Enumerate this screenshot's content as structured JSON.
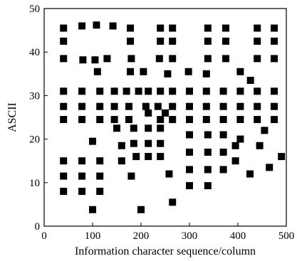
{
  "chart_data": {
    "type": "scatter",
    "xlabel": "Information character sequence/column",
    "ylabel": "ASCII",
    "xlim": [
      0,
      500
    ],
    "ylim": [
      0,
      50
    ],
    "xticks": [
      "0",
      "100",
      "200",
      "300",
      "400",
      "500"
    ],
    "yticks": [
      "0",
      "10",
      "20",
      "30",
      "40",
      "50"
    ],
    "marker": "square",
    "marker_color": "#000000",
    "grid": false,
    "points": [
      [
        40,
        45.5
      ],
      [
        78,
        46.0
      ],
      [
        108,
        46.2
      ],
      [
        142,
        46.0
      ],
      [
        178,
        45.5
      ],
      [
        240,
        45.5
      ],
      [
        265,
        45.5
      ],
      [
        338,
        45.5
      ],
      [
        375,
        45.5
      ],
      [
        440,
        45.5
      ],
      [
        475,
        45.5
      ],
      [
        40,
        42.5
      ],
      [
        178,
        42.5
      ],
      [
        240,
        42.5
      ],
      [
        265,
        42.5
      ],
      [
        338,
        42.5
      ],
      [
        375,
        42.5
      ],
      [
        440,
        42.5
      ],
      [
        475,
        42.5
      ],
      [
        40,
        38.5
      ],
      [
        80,
        38.2
      ],
      [
        105,
        38.2
      ],
      [
        130,
        38.5
      ],
      [
        180,
        38.5
      ],
      [
        238,
        38.5
      ],
      [
        265,
        38.5
      ],
      [
        338,
        38.5
      ],
      [
        375,
        38.5
      ],
      [
        440,
        38.5
      ],
      [
        475,
        38.5
      ],
      [
        110,
        35.5
      ],
      [
        178,
        35.5
      ],
      [
        205,
        35.5
      ],
      [
        255,
        35.0
      ],
      [
        298,
        35.5
      ],
      [
        335,
        35.0
      ],
      [
        405,
        35.5
      ],
      [
        426,
        33.5
      ],
      [
        40,
        31.0
      ],
      [
        78,
        31.0
      ],
      [
        115,
        31.0
      ],
      [
        145,
        31.0
      ],
      [
        170,
        31.0
      ],
      [
        195,
        31.0
      ],
      [
        215,
        31.0
      ],
      [
        240,
        31.0
      ],
      [
        265,
        31.0
      ],
      [
        300,
        31.0
      ],
      [
        335,
        31.0
      ],
      [
        370,
        31.0
      ],
      [
        405,
        31.0
      ],
      [
        440,
        31.0
      ],
      [
        475,
        31.0
      ],
      [
        40,
        27.5
      ],
      [
        78,
        27.5
      ],
      [
        115,
        27.5
      ],
      [
        145,
        27.5
      ],
      [
        175,
        27.5
      ],
      [
        210,
        27.5
      ],
      [
        235,
        27.5
      ],
      [
        265,
        27.5
      ],
      [
        300,
        27.5
      ],
      [
        335,
        27.5
      ],
      [
        370,
        27.5
      ],
      [
        405,
        27.5
      ],
      [
        440,
        27.5
      ],
      [
        475,
        27.5
      ],
      [
        215,
        26.0
      ],
      [
        250,
        26.0
      ],
      [
        40,
        24.5
      ],
      [
        78,
        24.5
      ],
      [
        115,
        24.5
      ],
      [
        145,
        24.5
      ],
      [
        175,
        24.5
      ],
      [
        240,
        24.5
      ],
      [
        265,
        24.5
      ],
      [
        300,
        24.5
      ],
      [
        335,
        24.5
      ],
      [
        370,
        24.5
      ],
      [
        405,
        24.5
      ],
      [
        440,
        24.5
      ],
      [
        475,
        24.5
      ],
      [
        150,
        22.5
      ],
      [
        185,
        22.5
      ],
      [
        215,
        22.5
      ],
      [
        240,
        22.5
      ],
      [
        455,
        22.0
      ],
      [
        300,
        21.0
      ],
      [
        338,
        21.0
      ],
      [
        370,
        21.0
      ],
      [
        405,
        20.0
      ],
      [
        100,
        19.5
      ],
      [
        185,
        19.0
      ],
      [
        215,
        19.0
      ],
      [
        240,
        19.0
      ],
      [
        160,
        18.5
      ],
      [
        395,
        18.5
      ],
      [
        445,
        18.5
      ],
      [
        300,
        17.0
      ],
      [
        338,
        17.0
      ],
      [
        370,
        17.0
      ],
      [
        190,
        16.0
      ],
      [
        215,
        16.0
      ],
      [
        240,
        16.0
      ],
      [
        490,
        16.0
      ],
      [
        40,
        15.0
      ],
      [
        78,
        15.0
      ],
      [
        115,
        15.0
      ],
      [
        160,
        15.0
      ],
      [
        395,
        15.0
      ],
      [
        300,
        13.0
      ],
      [
        338,
        13.0
      ],
      [
        370,
        13.0
      ],
      [
        465,
        13.5
      ],
      [
        258,
        12.0
      ],
      [
        425,
        12.0
      ],
      [
        40,
        11.5
      ],
      [
        78,
        11.5
      ],
      [
        115,
        11.5
      ],
      [
        180,
        11.5
      ],
      [
        300,
        9.3
      ],
      [
        338,
        9.3
      ],
      [
        40,
        8.0
      ],
      [
        78,
        8.0
      ],
      [
        115,
        8.0
      ],
      [
        265,
        5.5
      ],
      [
        100,
        3.8
      ],
      [
        200,
        3.8
      ]
    ]
  }
}
